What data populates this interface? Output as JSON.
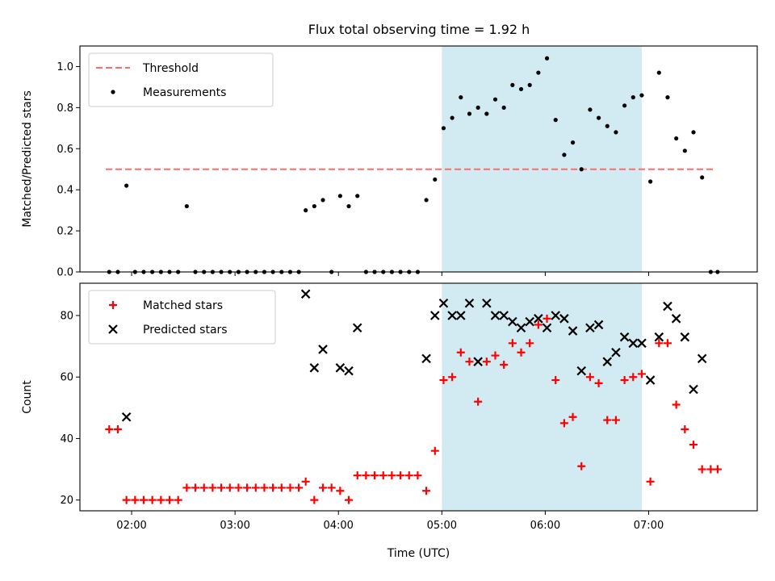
{
  "chart_data": [
    {
      "type": "scatter",
      "title": "Flux total observing time = 1.92 h",
      "ylabel": "Matched/Predicted stars",
      "xlabel": "",
      "ylim": [
        0,
        1.1
      ],
      "yticks": [
        "0.0",
        "0.2",
        "0.4",
        "0.6",
        "0.8",
        "1.0"
      ],
      "ytick_values": [
        0,
        0.2,
        0.4,
        0.6,
        0.8,
        1.0
      ],
      "x_axis": "time (UTC)",
      "xlim": [
        "01:30",
        "08:03"
      ],
      "xtick_times": [
        "02:00",
        "03:00",
        "04:00",
        "05:00",
        "06:00",
        "07:00"
      ],
      "show_xtick_labels": false,
      "grid": false,
      "legend": "top-left",
      "highlight_band": {
        "from": "05:00",
        "to": "06:56",
        "color": "#add8e6"
      },
      "series": [
        {
          "name": "Threshold",
          "kind": "dashed-line",
          "color": "#ff6b6b",
          "points": [
            [
              "01:45",
              0.5
            ],
            [
              "07:39",
              0.5
            ]
          ]
        },
        {
          "name": "Measurements",
          "kind": "dot",
          "color": "#000000",
          "points": [
            [
              "01:47",
              0.0
            ],
            [
              "01:52",
              0.0
            ],
            [
              "01:57",
              0.42
            ],
            [
              "02:02",
              0.0
            ],
            [
              "02:07",
              0.0
            ],
            [
              "02:12",
              0.0
            ],
            [
              "02:17",
              0.0
            ],
            [
              "02:22",
              0.0
            ],
            [
              "02:27",
              0.0
            ],
            [
              "02:32",
              0.32
            ],
            [
              "02:37",
              0.0
            ],
            [
              "02:42",
              0.0
            ],
            [
              "02:47",
              0.0
            ],
            [
              "02:52",
              0.0
            ],
            [
              "02:57",
              0.0
            ],
            [
              "03:02",
              0.0
            ],
            [
              "03:07",
              0.0
            ],
            [
              "03:12",
              0.0
            ],
            [
              "03:17",
              0.0
            ],
            [
              "03:22",
              0.0
            ],
            [
              "03:27",
              0.0
            ],
            [
              "03:32",
              0.0
            ],
            [
              "03:37",
              0.0
            ],
            [
              "03:41",
              0.3
            ],
            [
              "03:46",
              0.32
            ],
            [
              "03:51",
              0.35
            ],
            [
              "03:56",
              0.0
            ],
            [
              "04:01",
              0.37
            ],
            [
              "04:06",
              0.32
            ],
            [
              "04:11",
              0.37
            ],
            [
              "04:16",
              0.0
            ],
            [
              "04:21",
              0.0
            ],
            [
              "04:26",
              0.0
            ],
            [
              "04:31",
              0.0
            ],
            [
              "04:36",
              0.0
            ],
            [
              "04:41",
              0.0
            ],
            [
              "04:46",
              0.0
            ],
            [
              "04:51",
              0.35
            ],
            [
              "04:56",
              0.45
            ],
            [
              "05:01",
              0.7
            ],
            [
              "05:06",
              0.75
            ],
            [
              "05:11",
              0.85
            ],
            [
              "05:16",
              0.77
            ],
            [
              "05:21",
              0.8
            ],
            [
              "05:26",
              0.77
            ],
            [
              "05:31",
              0.84
            ],
            [
              "05:36",
              0.8
            ],
            [
              "05:41",
              0.91
            ],
            [
              "05:46",
              0.89
            ],
            [
              "05:51",
              0.91
            ],
            [
              "05:56",
              0.97
            ],
            [
              "06:01",
              1.04
            ],
            [
              "06:06",
              0.74
            ],
            [
              "06:11",
              0.57
            ],
            [
              "06:16",
              0.63
            ],
            [
              "06:21",
              0.5
            ],
            [
              "06:26",
              0.79
            ],
            [
              "06:31",
              0.75
            ],
            [
              "06:36",
              0.71
            ],
            [
              "06:41",
              0.68
            ],
            [
              "06:46",
              0.81
            ],
            [
              "06:51",
              0.85
            ],
            [
              "06:56",
              0.86
            ],
            [
              "07:01",
              0.44
            ],
            [
              "07:06",
              0.97
            ],
            [
              "07:11",
              0.85
            ],
            [
              "07:16",
              0.65
            ],
            [
              "07:21",
              0.59
            ],
            [
              "07:26",
              0.68
            ],
            [
              "07:31",
              0.46
            ],
            [
              "07:36",
              0.0
            ],
            [
              "07:40",
              0.0
            ]
          ]
        }
      ]
    },
    {
      "type": "scatter",
      "title": "",
      "ylabel": "Count",
      "xlabel": "Time (UTC)",
      "ylim": [
        16.5,
        90.5
      ],
      "yticks": [
        "20",
        "40",
        "60",
        "80"
      ],
      "ytick_values": [
        20,
        40,
        60,
        80
      ],
      "x_axis": "time (UTC)",
      "xlim": [
        "01:30",
        "08:03"
      ],
      "xtick_times": [
        "02:00",
        "03:00",
        "04:00",
        "05:00",
        "06:00",
        "07:00"
      ],
      "xticks": [
        "02:00",
        "03:00",
        "04:00",
        "05:00",
        "06:00",
        "07:00"
      ],
      "show_xtick_labels": true,
      "grid": false,
      "legend": "top-left",
      "highlight_band": {
        "from": "05:00",
        "to": "06:56",
        "color": "#add8e6"
      },
      "series": [
        {
          "name": "Matched stars",
          "kind": "plus",
          "color": "#ff0000",
          "points": [
            [
              "01:47",
              43
            ],
            [
              "01:52",
              43
            ],
            [
              "01:57",
              20
            ],
            [
              "02:02",
              20
            ],
            [
              "02:07",
              20
            ],
            [
              "02:12",
              20
            ],
            [
              "02:17",
              20
            ],
            [
              "02:22",
              20
            ],
            [
              "02:27",
              20
            ],
            [
              "02:32",
              24
            ],
            [
              "02:37",
              24
            ],
            [
              "02:42",
              24
            ],
            [
              "02:47",
              24
            ],
            [
              "02:52",
              24
            ],
            [
              "02:57",
              24
            ],
            [
              "03:02",
              24
            ],
            [
              "03:07",
              24
            ],
            [
              "03:12",
              24
            ],
            [
              "03:17",
              24
            ],
            [
              "03:22",
              24
            ],
            [
              "03:27",
              24
            ],
            [
              "03:32",
              24
            ],
            [
              "03:37",
              24
            ],
            [
              "03:41",
              26
            ],
            [
              "03:46",
              20
            ],
            [
              "03:51",
              24
            ],
            [
              "03:56",
              24
            ],
            [
              "04:01",
              23
            ],
            [
              "04:06",
              20
            ],
            [
              "04:11",
              28
            ],
            [
              "04:16",
              28
            ],
            [
              "04:21",
              28
            ],
            [
              "04:26",
              28
            ],
            [
              "04:31",
              28
            ],
            [
              "04:36",
              28
            ],
            [
              "04:41",
              28
            ],
            [
              "04:46",
              28
            ],
            [
              "04:51",
              23
            ],
            [
              "04:56",
              36
            ],
            [
              "05:01",
              59
            ],
            [
              "05:06",
              60
            ],
            [
              "05:11",
              68
            ],
            [
              "05:16",
              65
            ],
            [
              "05:21",
              52
            ],
            [
              "05:26",
              65
            ],
            [
              "05:31",
              67
            ],
            [
              "05:36",
              64
            ],
            [
              "05:41",
              71
            ],
            [
              "05:46",
              68
            ],
            [
              "05:51",
              71
            ],
            [
              "05:56",
              77
            ],
            [
              "06:01",
              79
            ],
            [
              "06:06",
              59
            ],
            [
              "06:11",
              45
            ],
            [
              "06:16",
              47
            ],
            [
              "06:21",
              31
            ],
            [
              "06:26",
              60
            ],
            [
              "06:31",
              58
            ],
            [
              "06:36",
              46
            ],
            [
              "06:41",
              46
            ],
            [
              "06:46",
              59
            ],
            [
              "06:51",
              60
            ],
            [
              "06:56",
              61
            ],
            [
              "07:01",
              26
            ],
            [
              "07:06",
              71
            ],
            [
              "07:11",
              71
            ],
            [
              "07:16",
              51
            ],
            [
              "07:21",
              43
            ],
            [
              "07:26",
              38
            ],
            [
              "07:31",
              30
            ],
            [
              "07:36",
              30
            ],
            [
              "07:40",
              30
            ]
          ]
        },
        {
          "name": "Predicted stars",
          "kind": "x",
          "color": "#000000",
          "points": [
            [
              "01:57",
              47
            ],
            [
              "03:41",
              87
            ],
            [
              "03:46",
              63
            ],
            [
              "03:51",
              69
            ],
            [
              "04:01",
              63
            ],
            [
              "04:06",
              62
            ],
            [
              "04:11",
              76
            ],
            [
              "04:51",
              66
            ],
            [
              "04:56",
              80
            ],
            [
              "05:01",
              84
            ],
            [
              "05:06",
              80
            ],
            [
              "05:11",
              80
            ],
            [
              "05:16",
              84
            ],
            [
              "05:21",
              65
            ],
            [
              "05:26",
              84
            ],
            [
              "05:31",
              80
            ],
            [
              "05:36",
              80
            ],
            [
              "05:41",
              78
            ],
            [
              "05:46",
              76
            ],
            [
              "05:51",
              78
            ],
            [
              "05:56",
              79
            ],
            [
              "06:01",
              76
            ],
            [
              "06:06",
              80
            ],
            [
              "06:11",
              79
            ],
            [
              "06:16",
              75
            ],
            [
              "06:21",
              62
            ],
            [
              "06:26",
              76
            ],
            [
              "06:31",
              77
            ],
            [
              "06:36",
              65
            ],
            [
              "06:41",
              68
            ],
            [
              "06:46",
              73
            ],
            [
              "06:51",
              71
            ],
            [
              "06:56",
              71
            ],
            [
              "07:01",
              59
            ],
            [
              "07:06",
              73
            ],
            [
              "07:11",
              83
            ],
            [
              "07:16",
              79
            ],
            [
              "07:21",
              73
            ],
            [
              "07:26",
              56
            ],
            [
              "07:31",
              66
            ]
          ]
        }
      ]
    }
  ]
}
